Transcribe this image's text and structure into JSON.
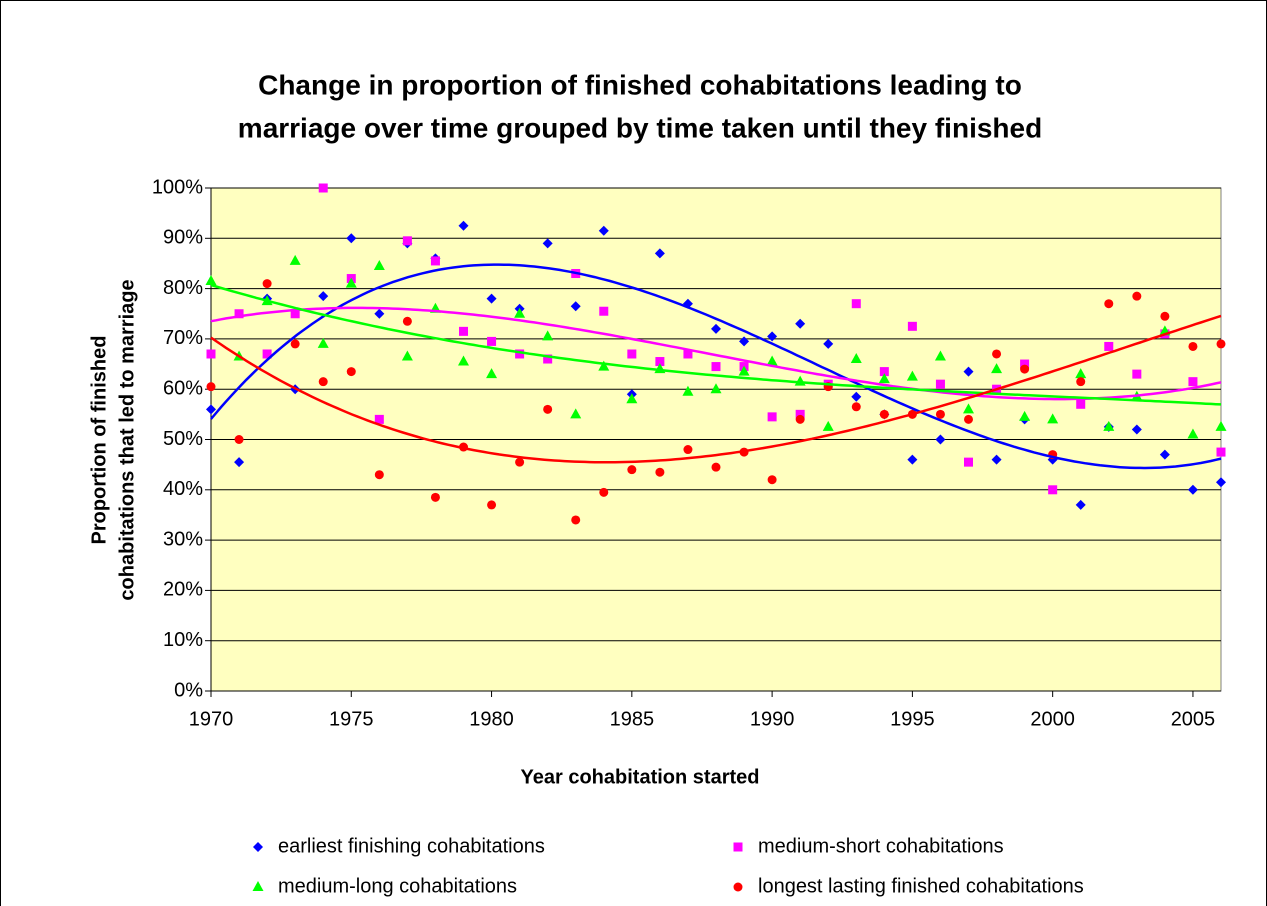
{
  "chart_data": {
    "type": "scatter",
    "title": [
      "Change in proportion of finished cohabitations leading to",
      "marriage over time grouped by time taken until they finished"
    ],
    "xlabel": "Year cohabitation started",
    "ylabel": [
      "Proportion of finished",
      "cohabitations that led to marriage"
    ],
    "x": [
      1970,
      1971,
      1972,
      1973,
      1974,
      1975,
      1976,
      1977,
      1978,
      1979,
      1980,
      1981,
      1982,
      1983,
      1984,
      1985,
      1986,
      1987,
      1988,
      1989,
      1990,
      1991,
      1992,
      1993,
      1994,
      1995,
      1996,
      1997,
      1998,
      1999,
      2000,
      2001,
      2002,
      2003,
      2004,
      2005,
      2006
    ],
    "series": [
      {
        "name": "earliest finishing cohabitations",
        "color": "#0000ff",
        "marker": "diamond",
        "values": [
          56,
          45.5,
          78,
          60,
          78.5,
          90,
          75,
          89,
          86,
          92.5,
          78,
          76,
          89,
          76.5,
          91.5,
          59,
          87,
          77,
          72,
          69.5,
          70.5,
          73,
          69,
          58.5,
          55,
          46,
          50,
          63.5,
          46,
          54,
          46,
          37,
          52.5,
          52,
          47,
          40,
          41.5
        ]
      },
      {
        "name": "medium-short cohabitations",
        "color": "#ff00ff",
        "marker": "square",
        "values": [
          67,
          75,
          67,
          75,
          100,
          82,
          54,
          89.5,
          85.5,
          71.5,
          69.5,
          67,
          66,
          83,
          75.5,
          67,
          65.5,
          67,
          64.5,
          64.5,
          54.5,
          55,
          61,
          77,
          63.5,
          72.5,
          61,
          45.5,
          60,
          65,
          40,
          57,
          68.5,
          63,
          71,
          61.5,
          47.5
        ]
      },
      {
        "name": "medium-long cohabitations",
        "color": "#00ff00",
        "marker": "triangle",
        "values": [
          81.5,
          66.5,
          77.5,
          85.5,
          69,
          81,
          84.5,
          66.5,
          76,
          65.5,
          63,
          75,
          70.5,
          55,
          64.5,
          58,
          64,
          59.5,
          60,
          63.5,
          65.5,
          61.5,
          52.5,
          66,
          62,
          62.5,
          66.5,
          56,
          64,
          54.5,
          54,
          63,
          52.5,
          58.5,
          71.5,
          51,
          52.5
        ]
      },
      {
        "name": "longest lasting finished cohabitations",
        "color": "#ff0000",
        "marker": "circle",
        "values": [
          60.5,
          50,
          81,
          69,
          61.5,
          63.5,
          43,
          73.5,
          38.5,
          48.5,
          37,
          45.5,
          56,
          34,
          39.5,
          44,
          43.5,
          48,
          44.5,
          47.5,
          42,
          54,
          60.5,
          56.5,
          55,
          55,
          55,
          54,
          67,
          64,
          47,
          61.5,
          77,
          78.5,
          74.5,
          68.5,
          69
        ]
      }
    ],
    "trendline": {
      "type": "polynomial",
      "order": 3
    },
    "xlim": [
      1970,
      2006
    ],
    "xticks": [
      1970,
      1975,
      1980,
      1985,
      1990,
      1995,
      2000,
      2005
    ],
    "ylim": [
      0,
      100
    ],
    "yticks": [
      {
        "value": 0,
        "label": "0%"
      },
      {
        "value": 10,
        "label": "10%"
      },
      {
        "value": 20,
        "label": "20%"
      },
      {
        "value": 30,
        "label": "30%"
      },
      {
        "value": 40,
        "label": "40%"
      },
      {
        "value": 50,
        "label": "50%"
      },
      {
        "value": 60,
        "label": "60%"
      },
      {
        "value": 70,
        "label": "70%"
      },
      {
        "value": 80,
        "label": "80%"
      },
      {
        "value": 90,
        "label": "90%"
      },
      {
        "value": 100,
        "label": "100%"
      }
    ],
    "grid": true,
    "legend": "bottom",
    "plot_background": "#ffffc0"
  }
}
